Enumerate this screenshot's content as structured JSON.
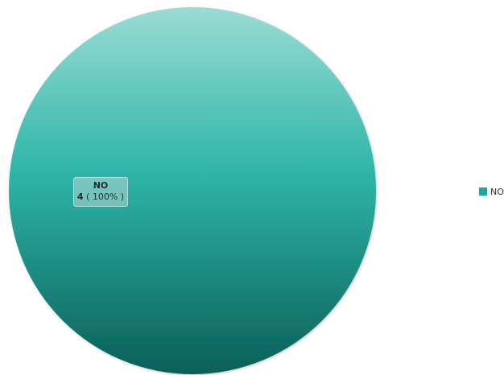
{
  "chart_data": {
    "type": "pie",
    "title": "",
    "categories": [
      "NO"
    ],
    "values": [
      4
    ],
    "percentages": [
      "100%"
    ],
    "legend_placement": "right",
    "colors": {
      "slice_light": "#9adcd4",
      "slice_mid": "#2fb5a8",
      "slice_dark": "#0a5f58",
      "legend_swatch": "#1aa99c"
    }
  },
  "labels": {
    "slice_name": "NO",
    "slice_value": "4",
    "slice_percent": " ( 100% )"
  },
  "legend": {
    "items": [
      {
        "label": "NO"
      }
    ]
  }
}
